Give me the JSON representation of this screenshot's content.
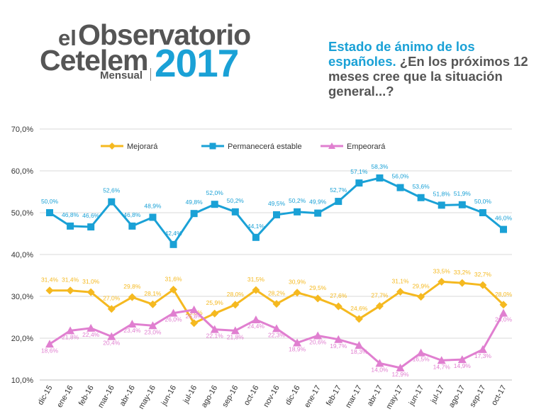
{
  "brand": {
    "prefix": "el",
    "name": "Observatorio",
    "company": "Cetelem",
    "edition": "Mensual",
    "year": "2017"
  },
  "title": {
    "accent": "Estado de ánimo de los españoles.",
    "question": " ¿En los próximos 12 meses cree que la situación general...?"
  },
  "chart_data": {
    "type": "line",
    "categories": [
      "dic-15",
      "ene-16",
      "feb-16",
      "mar-16",
      "abr-16",
      "may-16",
      "jun-16",
      "jul-16",
      "ago-16",
      "sep-16",
      "oct-16",
      "nov-16",
      "dic-16",
      "ene-17",
      "feb-17",
      "mar-17",
      "abr-17",
      "may-17",
      "jun-17",
      "jul-17",
      "ago-17",
      "sep-17",
      "oct-17"
    ],
    "ylim": [
      10,
      70
    ],
    "yticks": [
      "10,0%",
      "20,0%",
      "30,0%",
      "40,0%",
      "50,0%",
      "60,0%",
      "70,0%"
    ],
    "grid": true,
    "legend_position": "top",
    "series": [
      {
        "name": "Mejorará",
        "color": "#f5b920",
        "values": [
          31.4,
          31.4,
          31.0,
          27.0,
          29.8,
          28.1,
          31.6,
          23.6,
          25.9,
          28.0,
          31.5,
          28.2,
          30.9,
          29.5,
          27.6,
          24.6,
          27.7,
          31.1,
          29.9,
          33.5,
          33.2,
          32.7,
          28.0
        ],
        "labels": [
          "31,4%",
          "31,4%",
          "31,0%",
          "27,0%",
          "29,8%",
          "28,1%",
          "31,6%",
          "23,6%",
          "25,9%",
          "28,0%",
          "31,5%",
          "28,2%",
          "30,9%",
          "29,5%",
          "27,6%",
          "24,6%",
          "27,7%",
          "31,1%",
          "29,9%",
          "33,5%",
          "33,2%",
          "32,7%",
          "28,0%"
        ]
      },
      {
        "name": "Permanecerá estable",
        "color": "#1aa1d6",
        "values": [
          50.0,
          46.8,
          46.6,
          52.6,
          46.8,
          48.9,
          42.4,
          49.8,
          52.0,
          50.2,
          44.1,
          49.5,
          50.2,
          49.9,
          52.7,
          57.1,
          58.3,
          56.0,
          53.6,
          51.8,
          51.9,
          50.0,
          46.0
        ],
        "labels": [
          "50,0%",
          "46,8%",
          "46,6%",
          "52,6%",
          "46,8%",
          "48,9%",
          "42,4%",
          "49,8%",
          "52,0%",
          "50,2%",
          "44,1%",
          "49,5%",
          "50,2%",
          "49,9%",
          "52,7%",
          "57,1%",
          "58,3%",
          "56,0%",
          "53,6%",
          "51,8%",
          "51,9%",
          "50,0%",
          "46,0%"
        ]
      },
      {
        "name": "Empeorará",
        "color": "#e07fd0",
        "values": [
          18.6,
          21.8,
          22.4,
          20.4,
          23.4,
          23.0,
          26.0,
          26.8,
          22.1,
          21.8,
          24.4,
          22.3,
          18.9,
          20.6,
          19.7,
          18.3,
          14.0,
          12.9,
          16.5,
          14.7,
          14.9,
          17.3,
          26.0
        ],
        "labels": [
          "18,6%",
          "21,8%",
          "22,4%",
          "20,4%",
          "23,4%",
          "23,0%",
          "26,0%",
          "26,8%",
          "22,1%",
          "21,8%",
          "24,4%",
          "22,3%",
          "18,9%",
          "20,6%",
          "19,7%",
          "18,3%",
          "14,0%",
          "12,9%",
          "16,5%",
          "14,7%",
          "14,9%",
          "17,3%",
          "26,0%"
        ]
      }
    ]
  }
}
